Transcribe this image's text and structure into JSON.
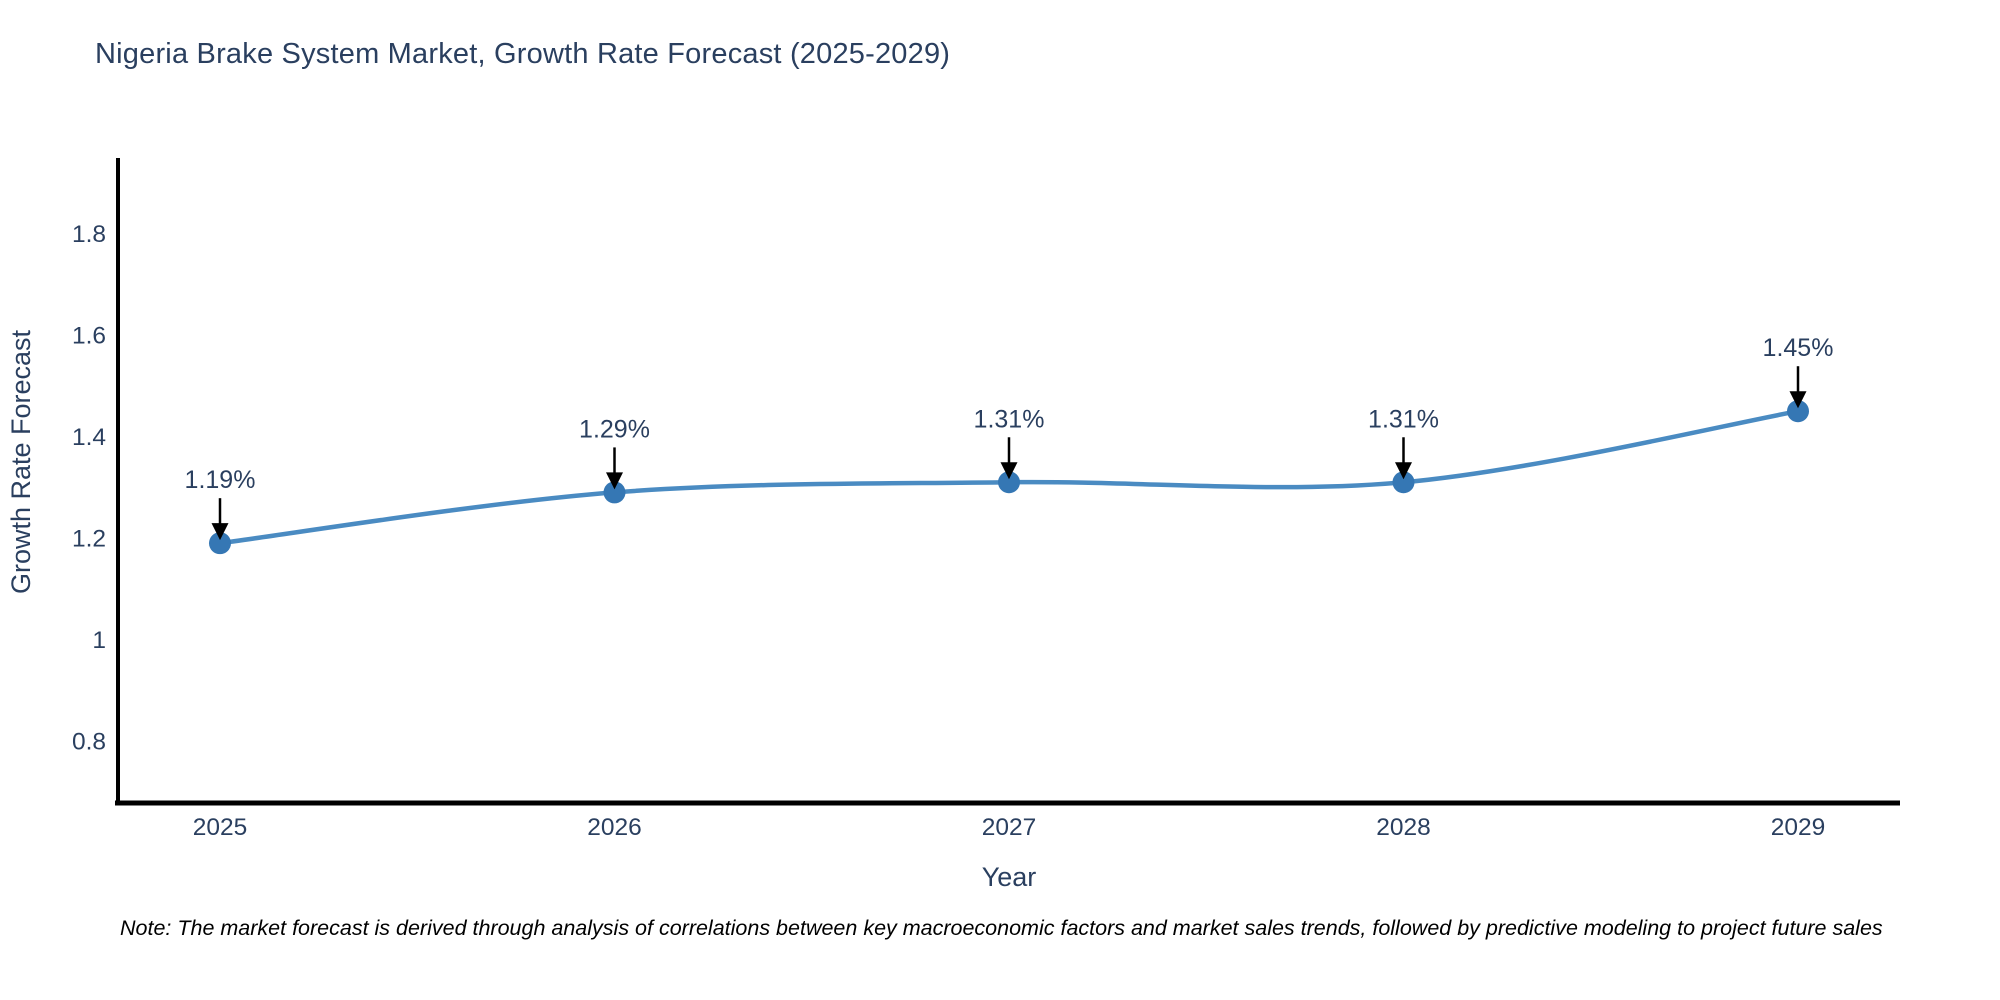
{
  "chart_data": {
    "type": "line",
    "title": "Nigeria Brake System Market, Growth Rate Forecast (2025-2029)",
    "xlabel": "Year",
    "ylabel": "Growth Rate Forecast",
    "categories": [
      2025,
      2026,
      2027,
      2028,
      2029
    ],
    "series": [
      {
        "name": "Growth Rate Forecast",
        "values": [
          1.19,
          1.29,
          1.31,
          1.31,
          1.45
        ]
      }
    ],
    "point_labels": [
      "1.19%",
      "1.29%",
      "1.31%",
      "1.31%",
      "1.45%"
    ],
    "yticks": [
      0.8,
      1,
      1.2,
      1.4,
      1.6,
      1.8
    ],
    "ylim": [
      0.678,
      1.945
    ],
    "line_shape": "spline",
    "grid": false,
    "legend_position": "none",
    "annotations_have_arrows": true,
    "note": "Note: The market forecast is derived through analysis of correlations between key macroeconomic factors and market sales trends, followed by predictive modeling to project future sales",
    "colors": {
      "line": "#4a8bc2",
      "marker": "#3577b4",
      "axis": "#000000",
      "text": "#2a3f5f",
      "arrow": "#000000",
      "background": "#ffffff"
    }
  }
}
